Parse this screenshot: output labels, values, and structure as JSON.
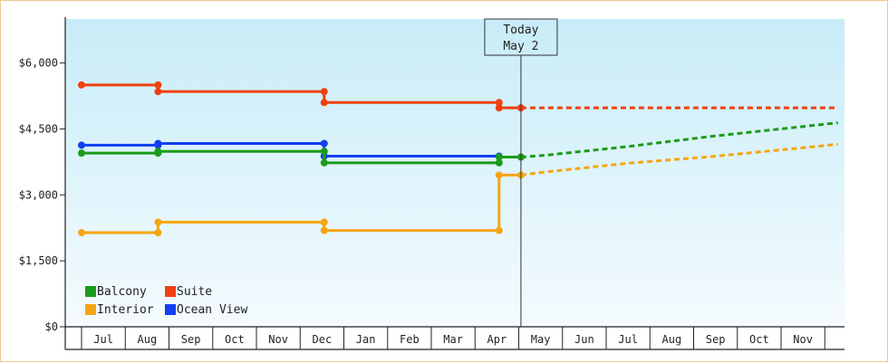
{
  "chart_data": {
    "type": "line",
    "title": "",
    "xlabel": "",
    "ylabel": "",
    "ylim": [
      0,
      7000
    ],
    "y_ticks": [
      0,
      1500,
      3000,
      4500,
      6000
    ],
    "y_tick_labels": [
      "$0",
      "$1,500",
      "$3,000",
      "$4,500",
      "$6,000"
    ],
    "x_tick_labels": [
      "Jul",
      "Aug",
      "Sep",
      "Oct",
      "Nov",
      "Dec",
      "Jan",
      "Feb",
      "Mar",
      "Apr",
      "May",
      "Jun",
      "Jul",
      "Aug",
      "Sep",
      "Oct",
      "Nov"
    ],
    "x_axis_start_month": 0,
    "x_axis_end_month": 17.3,
    "today": {
      "line1": "Today",
      "line2": "May 2",
      "month": 10.05
    },
    "background": {
      "top": "#c8ecf8",
      "bottom": "#f4fbfe"
    },
    "legend": {
      "placement": "bottom-left",
      "items": [
        {
          "name": "Balcony",
          "color": "#1a9c1a"
        },
        {
          "name": "Suite",
          "color": "#f04010"
        },
        {
          "name": "Interior",
          "color": "#f5a510"
        },
        {
          "name": "Ocean View",
          "color": "#1040f0"
        }
      ]
    },
    "series": [
      {
        "name": "Suite",
        "color": "#f04010",
        "steps": [
          {
            "x0": 0,
            "x1": 1.75,
            "y": 5500
          },
          {
            "x0": 1.75,
            "x1": 5.55,
            "y": 5350
          },
          {
            "x0": 5.55,
            "x1": 9.55,
            "y": 5100
          },
          {
            "x0": 9.55,
            "x1": 10.05,
            "y": 4980
          }
        ],
        "projection": [
          {
            "x": 10.05,
            "y": 4980
          },
          {
            "x": 17.3,
            "y": 4980
          }
        ]
      },
      {
        "name": "Ocean View",
        "color": "#1040f0",
        "steps": [
          {
            "x0": 0,
            "x1": 1.75,
            "y": 4130
          },
          {
            "x0": 1.75,
            "x1": 5.55,
            "y": 4170
          },
          {
            "x0": 5.55,
            "x1": 9.55,
            "y": 3880
          }
        ],
        "projection": []
      },
      {
        "name": "Balcony",
        "color": "#1a9c1a",
        "steps": [
          {
            "x0": 0,
            "x1": 1.75,
            "y": 3950
          },
          {
            "x0": 1.75,
            "x1": 5.55,
            "y": 3990
          },
          {
            "x0": 5.55,
            "x1": 9.55,
            "y": 3730
          },
          {
            "x0": 9.55,
            "x1": 10.05,
            "y": 3860
          }
        ],
        "projection": [
          {
            "x": 10.05,
            "y": 3860
          },
          {
            "x": 10.6,
            "y": 3900
          },
          {
            "x": 12.5,
            "y": 4100
          },
          {
            "x": 14.4,
            "y": 4330
          },
          {
            "x": 17.3,
            "y": 4640
          }
        ]
      },
      {
        "name": "Interior",
        "color": "#f5a510",
        "steps": [
          {
            "x0": 0,
            "x1": 1.75,
            "y": 2140
          },
          {
            "x0": 1.75,
            "x1": 5.55,
            "y": 2380
          },
          {
            "x0": 5.55,
            "x1": 9.55,
            "y": 2190
          },
          {
            "x0": 9.55,
            "x1": 10.05,
            "y": 3450
          }
        ],
        "projection": [
          {
            "x": 10.05,
            "y": 3450
          },
          {
            "x": 10.6,
            "y": 3520
          },
          {
            "x": 12.5,
            "y": 3720
          },
          {
            "x": 14.4,
            "y": 3870
          },
          {
            "x": 17.3,
            "y": 4150
          }
        ]
      }
    ]
  }
}
